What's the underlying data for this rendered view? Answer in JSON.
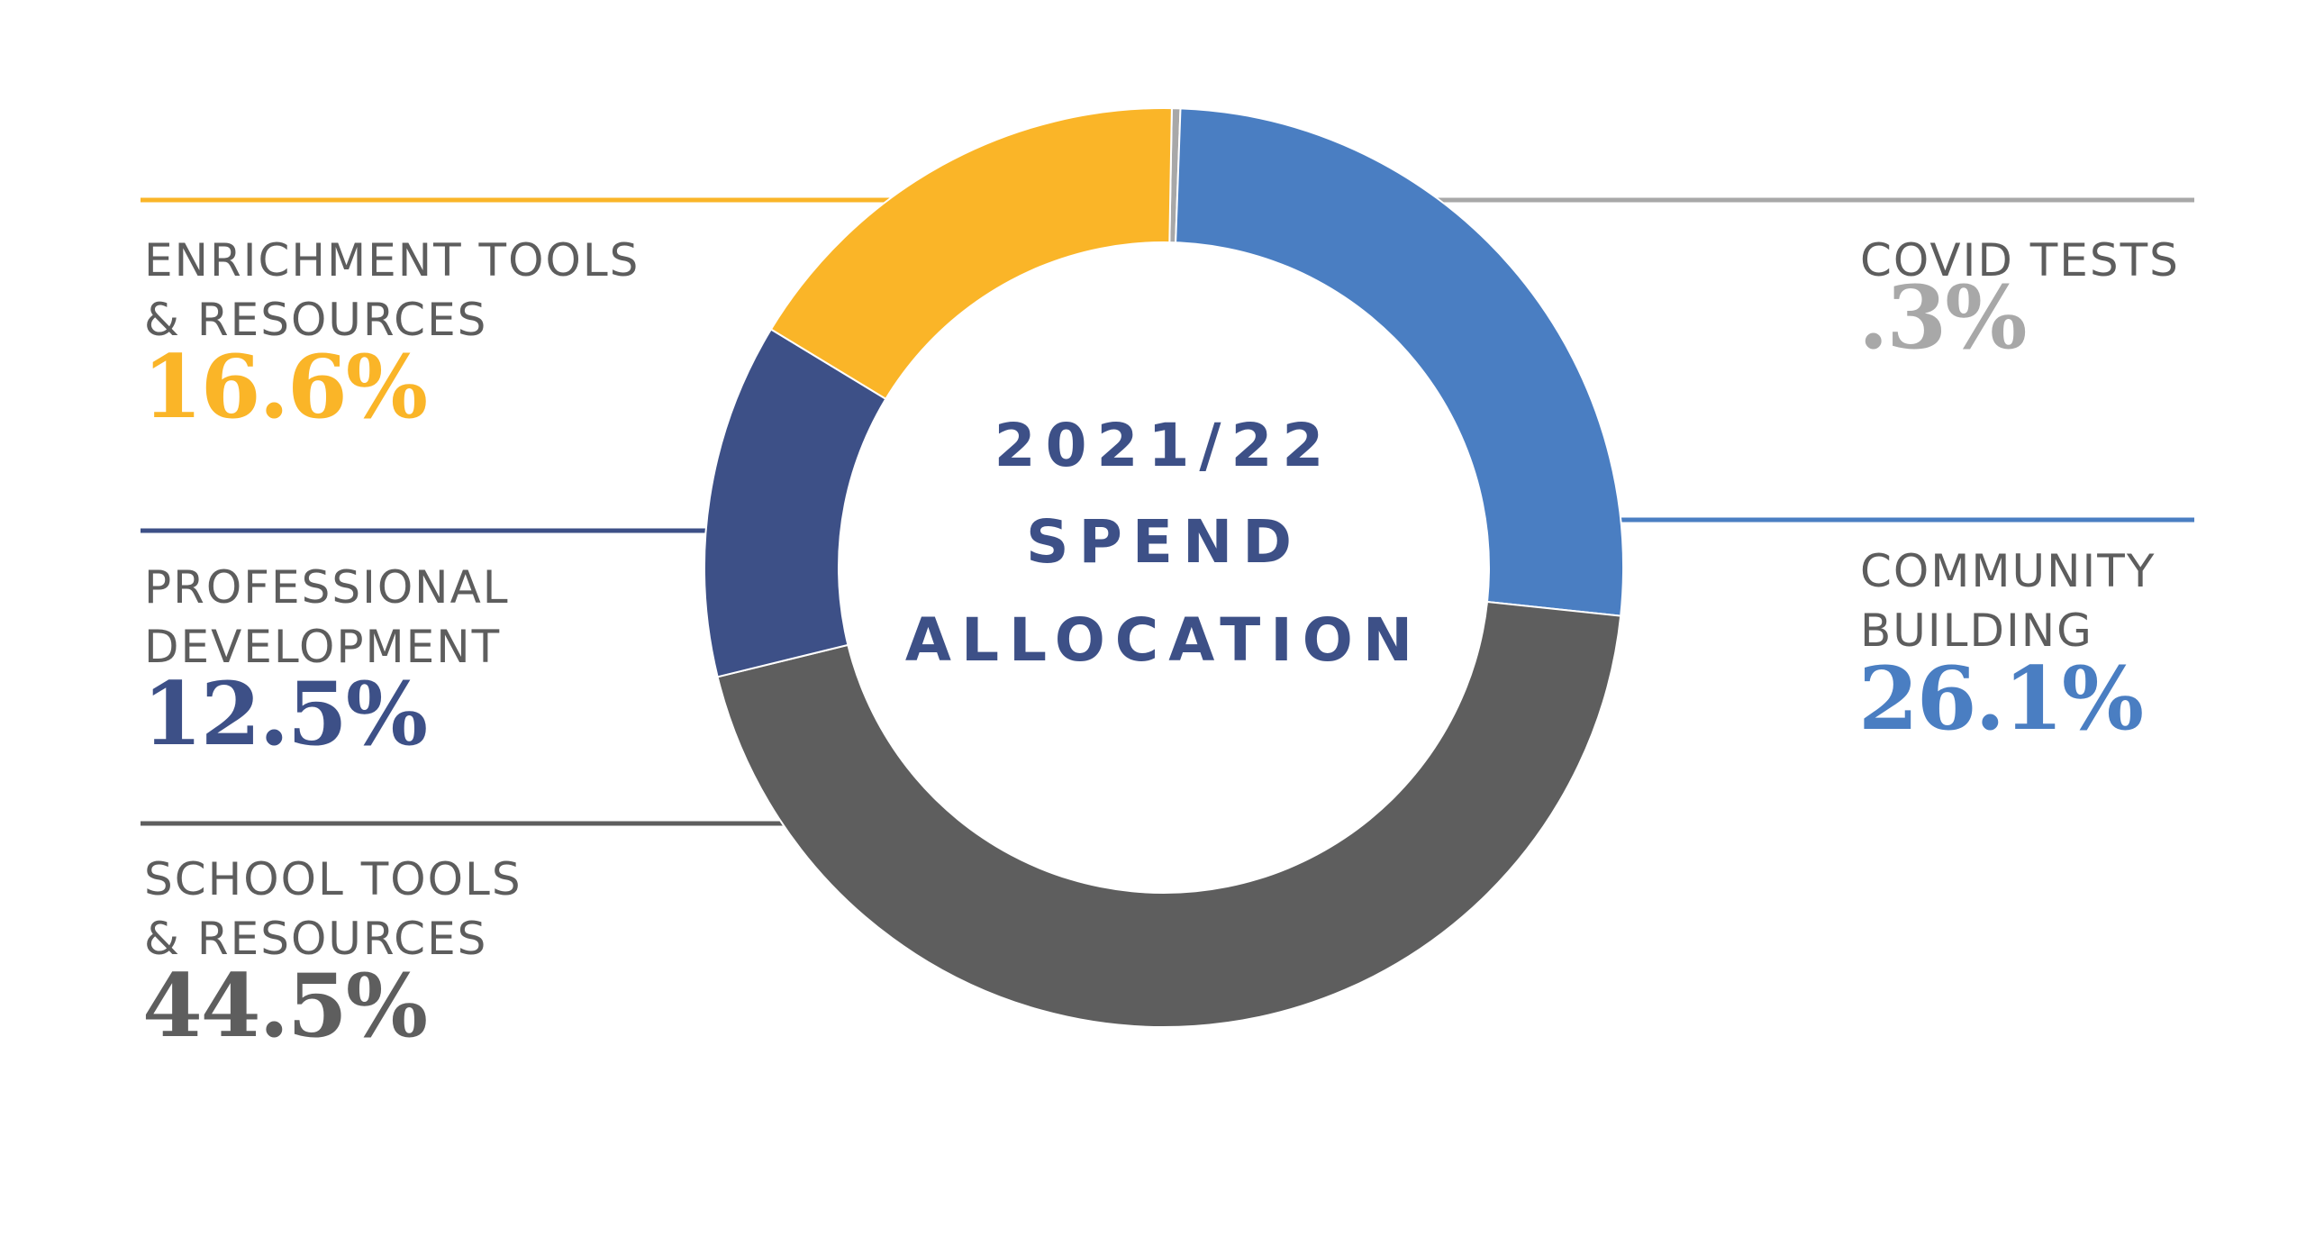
{
  "chart_data": {
    "type": "pie",
    "donut": true,
    "center_title": [
      "2021/22",
      "SPEND",
      "ALLOCATION"
    ],
    "slices": [
      {
        "label_lines": [
          "COVID TESTS"
        ],
        "value": 0.3,
        "value_label": ".3%",
        "color": "#a8a8a8"
      },
      {
        "label_lines": [
          "COMMUNITY",
          "BUILDING"
        ],
        "value": 26.1,
        "value_label": "26.1%",
        "color": "#4a7ec2"
      },
      {
        "label_lines": [
          "SCHOOL TOOLS",
          "& RESOURCES"
        ],
        "value": 44.5,
        "value_label": "44.5%",
        "color": "#5e5e5e"
      },
      {
        "label_lines": [
          "PROFESSIONAL",
          "DEVELOPMENT"
        ],
        "value": 12.5,
        "value_label": "12.5%",
        "color": "#3d5087"
      },
      {
        "label_lines": [
          "ENRICHMENT TOOLS",
          "& RESOURCES"
        ],
        "value": 16.6,
        "value_label": "16.6%",
        "color": "#fab528"
      }
    ]
  }
}
